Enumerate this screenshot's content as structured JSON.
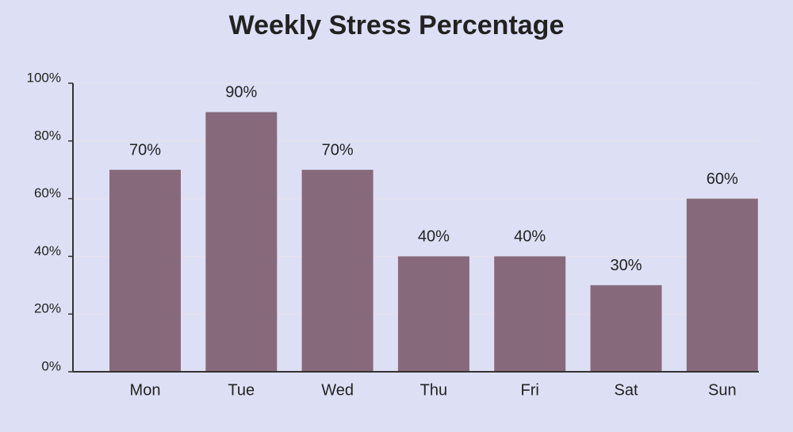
{
  "chart_data": {
    "type": "bar",
    "title": "Weekly Stress Percentage",
    "categories": [
      "Mon",
      "Tue",
      "Wed",
      "Thu",
      "Fri",
      "Sat",
      "Sun"
    ],
    "values": [
      70,
      90,
      70,
      40,
      40,
      30,
      60
    ],
    "value_labels": [
      "70%",
      "90%",
      "70%",
      "40%",
      "40%",
      "30%",
      "60%"
    ],
    "color": "#866a7c",
    "ylim": [
      0,
      100
    ],
    "yticks": [
      {
        "value": 0,
        "label": "0%"
      },
      {
        "value": 20,
        "label": "20%"
      },
      {
        "value": 40,
        "label": "40%"
      },
      {
        "value": 60,
        "label": "60%"
      },
      {
        "value": 80,
        "label": "80%"
      },
      {
        "value": 100,
        "label": "100%"
      }
    ],
    "grid": true
  }
}
